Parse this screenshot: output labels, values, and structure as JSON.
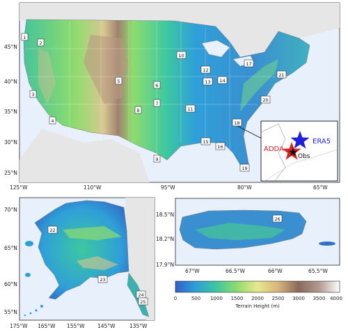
{
  "panels": {
    "conus": {
      "lat_ticks": [
        "45°N",
        "40°N",
        "35°N",
        "30°N",
        "25°N"
      ],
      "lon_ticks": [
        "125°W",
        "110°W",
        "95°W",
        "80°W",
        "65°W"
      ]
    },
    "alaska": {
      "lat_ticks": [
        "70°N",
        "65°N",
        "60°N",
        "55°N"
      ],
      "lon_ticks": [
        "175°W",
        "165°W",
        "155°W",
        "145°W",
        "135°W"
      ]
    },
    "puerto_rico": {
      "lat_ticks": [
        "18.5°N",
        "18.2°N",
        "17.9°N"
      ],
      "lon_ticks": [
        "67°W",
        "66.5°W",
        "66°W",
        "65.5°W"
      ]
    }
  },
  "sites": [
    "1",
    "2",
    "3",
    "4",
    "5",
    "6",
    "7",
    "8",
    "9",
    "10",
    "11",
    "12",
    "13",
    "14",
    "15",
    "16",
    "17",
    "18",
    "19",
    "20",
    "21",
    "22",
    "23",
    "24",
    "25",
    "26"
  ],
  "inset": {
    "era5_label": "ERA5",
    "adda_label": "ADDA",
    "obs_label": "Obs",
    "era5_color": "#1f1fe0",
    "adda_color": "#e02020"
  },
  "colorbar": {
    "ticks": [
      "0",
      "500",
      "1000",
      "1500",
      "2000",
      "2500",
      "3000",
      "3500",
      "4000"
    ],
    "label": "Terrain Height (m)",
    "colors": [
      "#3060c8",
      "#2f9fd8",
      "#3cc8a0",
      "#8fdc6e",
      "#e8e890",
      "#d9b47a",
      "#8a6a5a",
      "#b39a90",
      "#ffffff"
    ]
  },
  "colors": {
    "water": "#e8f0fb",
    "lowland": "#2f8fd0",
    "mid": "#46c49a",
    "high": "#d8c890"
  }
}
